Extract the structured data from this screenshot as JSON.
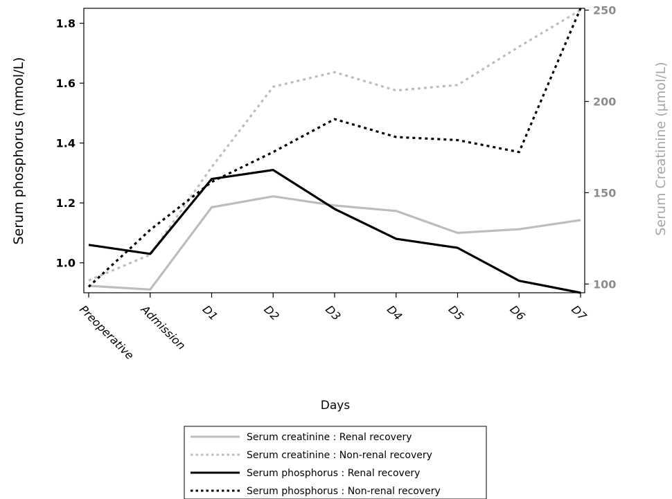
{
  "chart_data": {
    "type": "line",
    "title": "",
    "xlabel": "Days",
    "ylabel_left": "Serum phosphorus (mmol/L)",
    "ylabel_right": "Serum Creatinine (µmol/L)",
    "categories": [
      "Preoperative",
      "Admission",
      "D1",
      "D2",
      "D3",
      "D4",
      "D5",
      "D6",
      "D7"
    ],
    "ylim_left": [
      0.9,
      1.85
    ],
    "ylim_right": [
      95.2,
      251
    ],
    "yticks_left": [
      "1.0",
      "1.2",
      "1.4",
      "1.6",
      "1.8"
    ],
    "yticks_left_values": [
      1.0,
      1.2,
      1.4,
      1.6,
      1.8
    ],
    "yticks_right": [
      "100",
      "150",
      "200",
      "250"
    ],
    "yticks_right_values": [
      100,
      150,
      200,
      250
    ],
    "grid": false,
    "legend_position": "bottom",
    "series": [
      {
        "name": "Serum creatinine : Renal recovery",
        "axis": "right",
        "color": "#bdbdbd",
        "style": "solid",
        "values": [
          99,
          97,
          142,
          148,
          143,
          140,
          128,
          130,
          135
        ]
      },
      {
        "name": "Serum creatinine : Non-renal recovery",
        "axis": "right",
        "color": "#bdbdbd",
        "style": "dotted",
        "values": [
          102,
          116,
          164,
          208,
          216,
          206,
          209,
          230,
          250
        ]
      },
      {
        "name": "Serum phosphorus : Renal recovery",
        "axis": "left",
        "color": "#000000",
        "style": "solid",
        "values": [
          1.06,
          1.03,
          1.28,
          1.31,
          1.18,
          1.08,
          1.05,
          0.94,
          0.9
        ]
      },
      {
        "name": "Serum phosphorus : Non-renal recovery",
        "axis": "left",
        "color": "#000000",
        "style": "dotted",
        "values": [
          0.92,
          1.11,
          1.27,
          1.37,
          1.48,
          1.42,
          1.41,
          1.37,
          1.85
        ]
      }
    ]
  }
}
